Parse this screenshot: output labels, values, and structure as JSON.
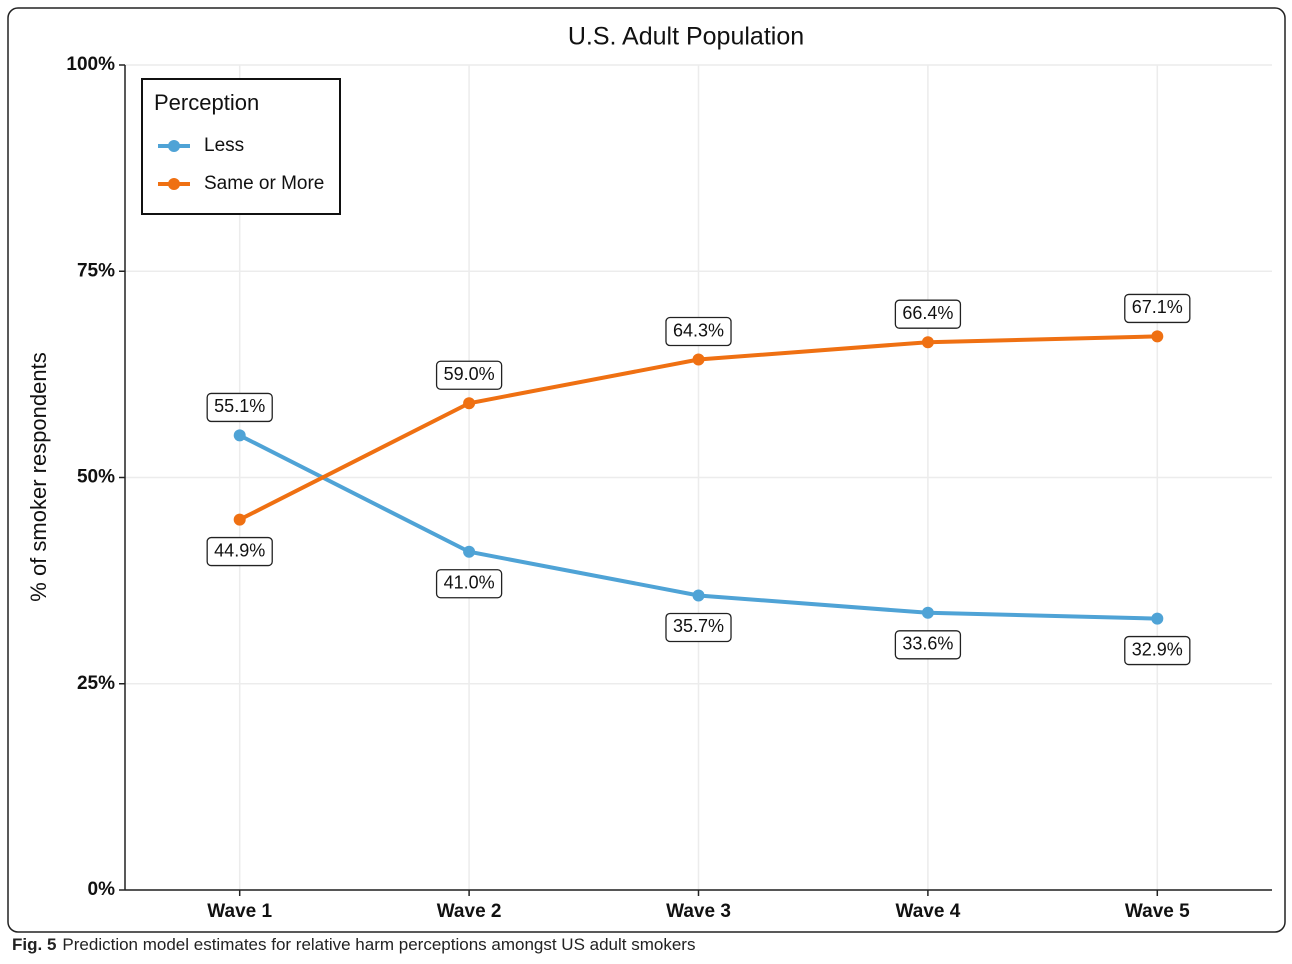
{
  "chart_data": {
    "type": "line",
    "title": "U.S. Adult Population",
    "y_label": "% of smoker respondents",
    "legend_title": "Perception",
    "legend": "top-left",
    "grid": true,
    "categories": [
      "Wave 1",
      "Wave 2",
      "Wave 3",
      "Wave 4",
      "Wave 5"
    ],
    "series": [
      {
        "name": "Less",
        "color": "#4fa3d6",
        "values": [
          55.1,
          41.0,
          35.7,
          33.6,
          32.9
        ],
        "value_labels": [
          "55.1%",
          "41.0%",
          "35.7%",
          "33.6%",
          "32.9%"
        ]
      },
      {
        "name": "Same or More",
        "color": "#ef7012",
        "values": [
          44.9,
          59.0,
          64.3,
          66.4,
          67.1
        ],
        "value_labels": [
          "44.9%",
          "59.0%",
          "64.3%",
          "66.4%",
          "67.1%"
        ]
      }
    ],
    "ylim": [
      0,
      100
    ],
    "yticks": [
      {
        "value": 0,
        "label": "0%"
      },
      {
        "value": 25,
        "label": "25%"
      },
      {
        "value": 50,
        "label": "50%"
      },
      {
        "value": 75,
        "label": "75%"
      },
      {
        "value": 100,
        "label": "100%"
      }
    ]
  },
  "caption": {
    "label": "Fig. 5",
    "text": "Prediction model estimates for relative harm perceptions amongst US adult smokers"
  }
}
